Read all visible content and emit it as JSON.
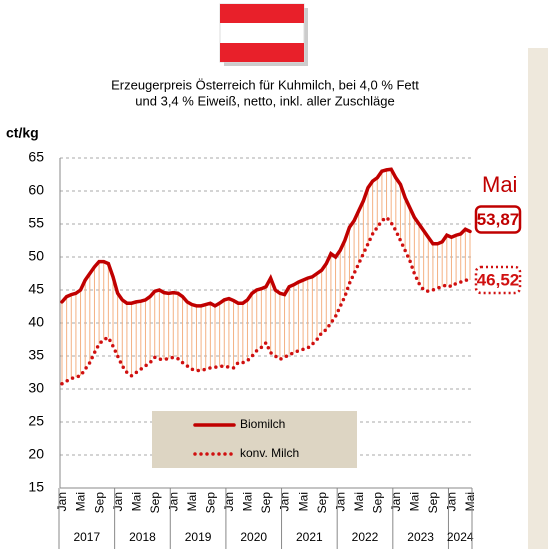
{
  "chart_data": {
    "type": "line",
    "title": [
      "Erzeugerpreis Österreich für Kuhmilch, bei 4,0 % Fett",
      "und 3,4 % Eiweiß, netto, inkl. aller Zuschläge"
    ],
    "ylabel": "ct/kg",
    "categories": [
      "Jan",
      null,
      null,
      null,
      "Mai",
      null,
      null,
      null,
      "Sep",
      null,
      null,
      null,
      "Jan",
      null,
      null,
      null,
      "Mai",
      null,
      null,
      null,
      "Sep",
      null,
      null,
      null,
      "Jan",
      null,
      null,
      null,
      "Mai",
      null,
      null,
      null,
      "Sep",
      null,
      null,
      null,
      "Jan",
      null,
      null,
      null,
      "Mai",
      null,
      null,
      null,
      "Sep",
      null,
      null,
      null,
      "Jan",
      null,
      null,
      null,
      "Mai",
      null,
      null,
      null,
      "Sep",
      null,
      null,
      null,
      "Jan",
      null,
      null,
      null,
      "Mai",
      null,
      null,
      null,
      "Sep",
      null,
      null,
      null,
      "Jan",
      null,
      null,
      null,
      "Mai",
      null,
      null,
      null,
      "Sep",
      null,
      null,
      null,
      "Jan",
      null,
      null,
      null,
      "Mai"
    ],
    "years": [
      "2017",
      "2018",
      "2019",
      "2020",
      "2021",
      "2022",
      "2023",
      "2024"
    ],
    "series": [
      {
        "name": "Biomilch",
        "color": "#c00000",
        "style": "solid",
        "end_label": "53,87",
        "values": [
          43.2,
          44,
          44.3,
          44.5,
          45,
          46.5,
          47.5,
          48.5,
          49.3,
          49.3,
          49,
          47,
          44.5,
          43.5,
          43,
          43,
          43.2,
          43.3,
          43.5,
          44,
          44.8,
          45,
          44.6,
          44.5,
          44.6,
          44.5,
          44,
          43.2,
          42.8,
          42.6,
          42.6,
          42.8,
          43,
          42.6,
          43,
          43.5,
          43.7,
          43.4,
          43,
          43,
          43.5,
          44.5,
          45,
          45.2,
          45.5,
          46.8,
          45,
          44.5,
          44.3,
          45.5,
          45.8,
          46.2,
          46.5,
          46.8,
          47,
          47.5,
          48,
          49,
          50.5,
          50,
          51,
          52.5,
          54.5,
          55.5,
          57,
          58.5,
          60.5,
          61.5,
          62,
          63,
          63.2,
          63.3,
          62,
          61,
          59,
          57.5,
          56,
          55,
          54,
          53,
          52,
          52,
          52.3,
          53.3,
          53,
          53.3,
          53.5,
          54.2,
          53.87
        ]
      },
      {
        "name": "konv. Milch",
        "color": "#d01010",
        "style": "dotted",
        "end_label": "46,52",
        "values": [
          30.8,
          31.2,
          31.6,
          31.8,
          32,
          33,
          34,
          35.5,
          36.8,
          37.5,
          37.8,
          36.5,
          35,
          33.5,
          32.5,
          32,
          32.5,
          33,
          33.5,
          34,
          34.8,
          34.5,
          34.5,
          34.6,
          34.8,
          34.6,
          34,
          33.5,
          33,
          32.8,
          32.8,
          33,
          33.2,
          33.3,
          33.4,
          33.5,
          33.3,
          33.2,
          34,
          34,
          34.3,
          35,
          35.8,
          36.3,
          37,
          35.5,
          35,
          34.5,
          34.8,
          35.2,
          35.5,
          35.8,
          36,
          36.2,
          36.8,
          37.5,
          38.5,
          39,
          40,
          41,
          42.5,
          44,
          46,
          47.5,
          49,
          50.5,
          52,
          53.5,
          54.5,
          55.5,
          56,
          55.2,
          54,
          52.5,
          51,
          49.5,
          47.5,
          46,
          45,
          44.8,
          45,
          45.3,
          45.5,
          45.8,
          45.5,
          46,
          46.2,
          46.5,
          46.52
        ]
      }
    ],
    "end_annotation": "Mai",
    "hatch_color": "#f4b183",
    "ylim": [
      15,
      65
    ],
    "yticks": [
      15,
      20,
      25,
      30,
      35,
      40,
      45,
      50,
      55,
      60,
      65
    ],
    "grid": true
  }
}
